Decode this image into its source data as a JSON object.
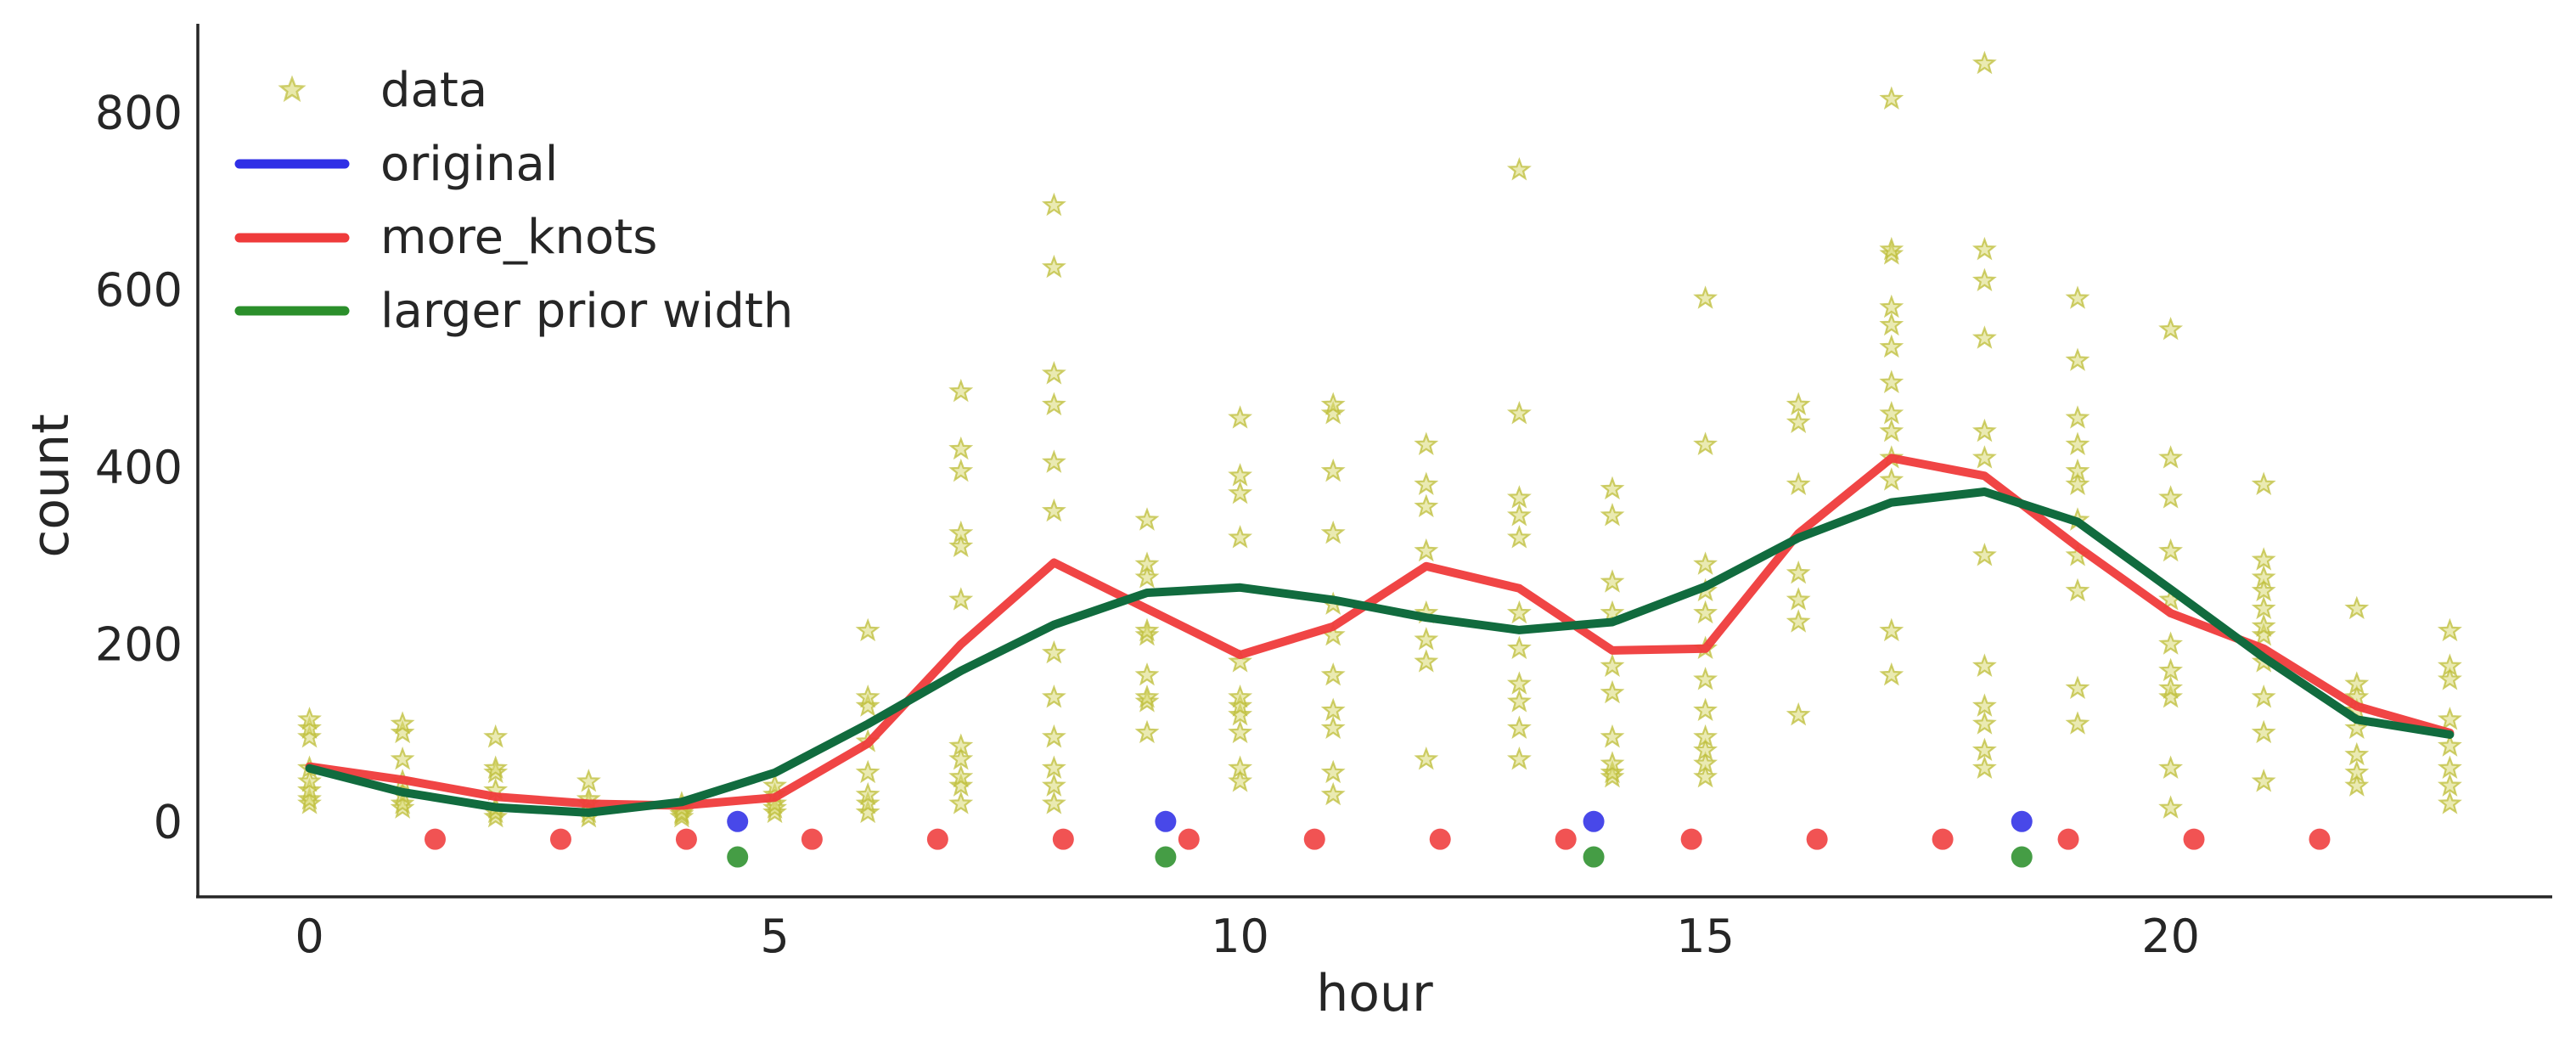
{
  "chart_data": {
    "type": "line",
    "xlabel": "hour",
    "ylabel": "count",
    "xlim": [
      -1.2,
      24.1
    ],
    "ylim": [
      -85,
      900
    ],
    "xticks": [
      0,
      5,
      10,
      15,
      20
    ],
    "yticks": [
      0,
      200,
      400,
      600,
      800
    ],
    "legend_position": "top-left",
    "legend": [
      {
        "label": "data",
        "marker": "star",
        "color": "#bdbd3a"
      },
      {
        "label": "original",
        "marker": "line",
        "color": "#2f2fe6"
      },
      {
        "label": "more_knots",
        "marker": "line",
        "color": "#ef3b3b"
      },
      {
        "label": "larger prior width",
        "marker": "line",
        "color": "#2b8f2b"
      }
    ],
    "data_points": {
      "name": "data",
      "color": "#bdbd3a",
      "by_hour": [
        [
          20,
          25,
          35,
          45,
          60,
          95,
          105,
          115
        ],
        [
          15,
          20,
          30,
          45,
          70,
          100,
          110
        ],
        [
          5,
          10,
          15,
          35,
          55,
          60,
          95
        ],
        [
          5,
          10,
          20,
          25,
          45
        ],
        [
          5,
          8,
          10,
          15,
          20
        ],
        [
          10,
          15,
          20,
          30,
          40
        ],
        [
          10,
          20,
          30,
          55,
          90,
          130,
          140,
          215
        ],
        [
          20,
          40,
          50,
          70,
          85,
          250,
          310,
          325,
          395,
          420,
          485
        ],
        [
          20,
          40,
          60,
          95,
          140,
          190,
          350,
          405,
          470,
          505,
          625,
          695
        ],
        [
          100,
          135,
          140,
          165,
          210,
          215,
          275,
          290,
          340
        ],
        [
          45,
          60,
          100,
          120,
          130,
          140,
          180,
          320,
          370,
          390,
          455
        ],
        [
          30,
          55,
          105,
          125,
          165,
          210,
          245,
          325,
          395,
          460,
          470
        ],
        [
          70,
          180,
          205,
          235,
          305,
          355,
          380,
          425
        ],
        [
          70,
          105,
          135,
          155,
          195,
          235,
          320,
          345,
          365,
          460,
          735
        ],
        [
          50,
          55,
          65,
          95,
          145,
          175,
          235,
          270,
          345,
          375
        ],
        [
          50,
          65,
          80,
          95,
          125,
          160,
          195,
          235,
          260,
          290,
          425,
          590
        ],
        [
          120,
          225,
          250,
          280,
          380,
          450,
          470
        ],
        [
          165,
          215,
          385,
          410,
          440,
          460,
          495,
          535,
          560,
          580,
          640,
          645,
          815
        ],
        [
          60,
          80,
          110,
          130,
          175,
          300,
          410,
          440,
          545,
          610,
          645,
          855
        ],
        [
          110,
          150,
          260,
          300,
          340,
          380,
          395,
          425,
          455,
          520,
          590
        ],
        [
          15,
          60,
          140,
          150,
          170,
          200,
          250,
          305,
          365,
          410,
          555
        ],
        [
          45,
          100,
          140,
          180,
          210,
          220,
          240,
          260,
          275,
          295,
          380
        ],
        [
          40,
          55,
          75,
          105,
          125,
          140,
          155,
          240
        ],
        [
          20,
          40,
          60,
          85,
          115,
          160,
          175,
          215
        ]
      ]
    },
    "series": [
      {
        "name": "more_knots",
        "color": "#ef3b3b",
        "x": [
          0,
          1,
          2,
          3,
          4,
          5,
          6,
          7,
          8,
          9,
          10,
          11,
          12,
          13,
          14,
          15,
          16,
          17,
          18,
          19,
          20,
          21,
          22,
          23
        ],
        "y": [
          62,
          47,
          28,
          20,
          18,
          27,
          88,
          200,
          292,
          240,
          188,
          220,
          288,
          263,
          193,
          195,
          325,
          410,
          390,
          310,
          235,
          195,
          130,
          100
        ]
      },
      {
        "name": "larger prior width",
        "color": "#116b3e",
        "x": [
          0,
          1,
          2,
          3,
          4,
          5,
          6,
          7,
          8,
          9,
          10,
          11,
          12,
          13,
          14,
          15,
          16,
          17,
          18,
          19,
          20,
          21,
          22,
          23
        ],
        "y": [
          60,
          33,
          16,
          10,
          22,
          55,
          110,
          170,
          222,
          258,
          264,
          250,
          230,
          216,
          225,
          265,
          320,
          360,
          372,
          338,
          262,
          185,
          115,
          98
        ]
      }
    ],
    "knots": [
      {
        "name": "original",
        "color": "#2f2fe6",
        "y": 0,
        "x": [
          4.6,
          9.2,
          13.8,
          18.4
        ]
      },
      {
        "name": "more_knots",
        "color": "#ef3b3b",
        "y": -20,
        "x": [
          1.35,
          2.7,
          4.05,
          5.4,
          6.75,
          8.1,
          9.45,
          10.8,
          12.15,
          13.5,
          14.85,
          16.2,
          17.55,
          18.9,
          20.25,
          21.6
        ]
      },
      {
        "name": "larger prior width",
        "color": "#2b8f2b",
        "y": -40,
        "x": [
          4.6,
          9.2,
          13.8,
          18.4
        ]
      }
    ]
  }
}
